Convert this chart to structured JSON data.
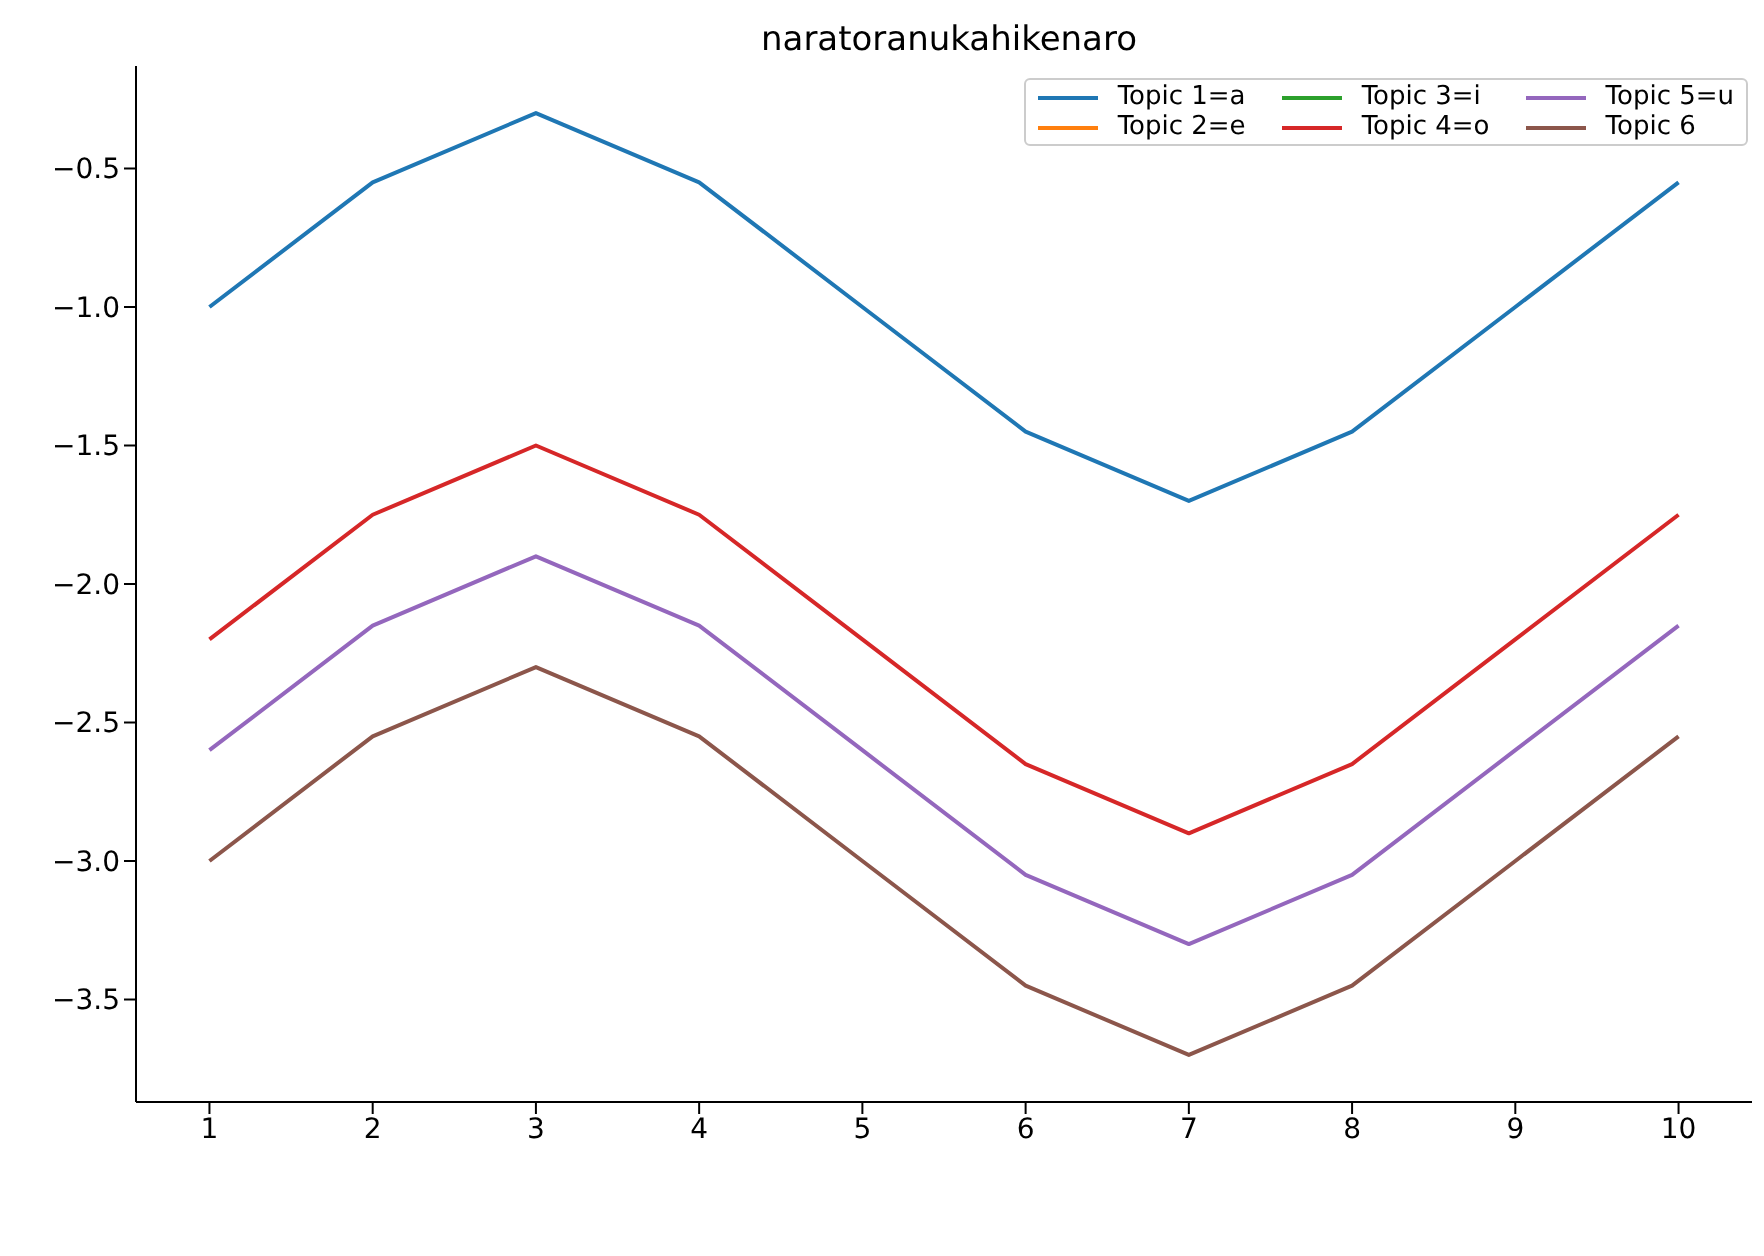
{
  "chart_data": {
    "type": "line",
    "title": "naratoranukahikenaro",
    "x": [
      1,
      2,
      3,
      4,
      5,
      6,
      7,
      8,
      9,
      10
    ],
    "series": [
      {
        "name": "Topic 1=a",
        "color": "#1f77b4",
        "values": [
          -1.0,
          -0.55,
          -0.3,
          -0.55,
          -1.0,
          -1.45,
          -1.7,
          -1.45,
          -1.0,
          -0.55
        ]
      },
      {
        "name": "Topic 2=e",
        "color": "#ff7f0e",
        "values": [
          null,
          null,
          null,
          null,
          null,
          null,
          null,
          null,
          null,
          null
        ]
      },
      {
        "name": "Topic 3=i",
        "color": "#2ca02c",
        "values": [
          null,
          null,
          null,
          null,
          null,
          null,
          null,
          null,
          null,
          null
        ]
      },
      {
        "name": "Topic 4=o",
        "color": "#d62728",
        "values": [
          -2.2,
          -1.75,
          -1.5,
          -1.75,
          -2.2,
          -2.65,
          -2.9,
          -2.65,
          -2.2,
          -1.75
        ]
      },
      {
        "name": "Topic 5=u",
        "color": "#9467bd",
        "values": [
          -2.6,
          -2.15,
          -1.9,
          -2.15,
          -2.6,
          -3.05,
          -3.3,
          -3.05,
          -2.6,
          -2.15
        ]
      },
      {
        "name": "Topic 6",
        "color": "#8c564b",
        "values": [
          -3.0,
          -2.55,
          -2.3,
          -2.55,
          -3.0,
          -3.45,
          -3.7,
          -3.45,
          -3.0,
          -2.55
        ]
      }
    ],
    "xlim": [
      0.55,
      10.45
    ],
    "xticks": [
      1,
      2,
      3,
      4,
      5,
      6,
      7,
      8,
      9,
      10
    ],
    "ylim": [
      -3.87,
      -0.13
    ],
    "yticks": [
      -3.5,
      {
        "value": -3,
        "label": "−3.0"
      },
      -2.5,
      {
        "value": -2,
        "label": "−2.0"
      },
      -1.5,
      {
        "value": -1,
        "label": "−1.0"
      },
      -0.5
    ],
    "grid": false,
    "legend": "top right",
    "marker": "none",
    "line_style": "solid"
  }
}
